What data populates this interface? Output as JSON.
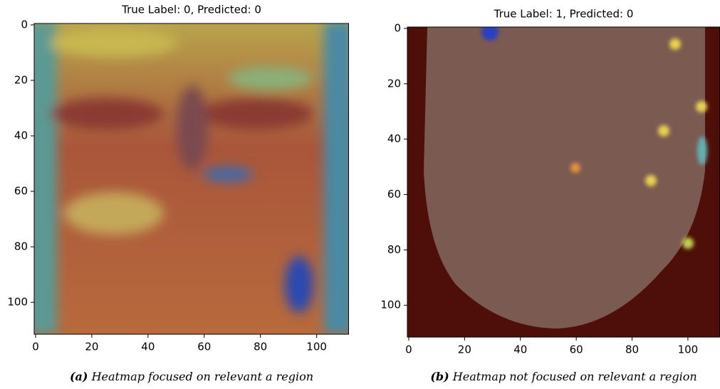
{
  "chart_data": [
    {
      "type": "image",
      "title": "True Label: 0, Predicted: 0",
      "xlim": [
        -0.5,
        111.5
      ],
      "ylim": [
        111.5,
        -0.5
      ],
      "xticks": [
        0,
        20,
        40,
        60,
        80,
        100
      ],
      "yticks": [
        0,
        20,
        40,
        60,
        80,
        100
      ],
      "caption_label": "(a)",
      "caption": "Heatmap focused on relevant a region"
    },
    {
      "type": "image",
      "title": "True Label: 1, Predicted: 0",
      "xlim": [
        -0.5,
        111.5
      ],
      "ylim": [
        111.5,
        -0.5
      ],
      "xticks": [
        0,
        20,
        40,
        60,
        80,
        100
      ],
      "yticks": [
        0,
        20,
        40,
        60,
        80,
        100
      ],
      "caption_label": "(b)",
      "caption": "Heatmap not focused on relevant a region"
    }
  ]
}
